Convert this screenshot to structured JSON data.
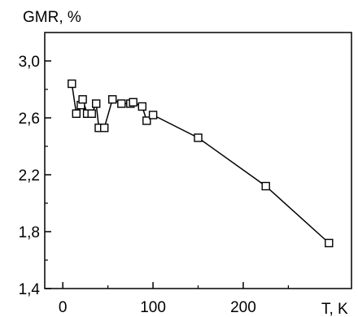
{
  "chart_data": {
    "type": "line",
    "ylabel": "GMR, %",
    "xlabel": "T, K",
    "xlim": [
      -20,
      320
    ],
    "ylim": [
      1.4,
      3.2
    ],
    "x_ticks": [
      0,
      100,
      200
    ],
    "x_tick_labels": [
      "0",
      "100",
      "200"
    ],
    "y_ticks": [
      1.4,
      1.8,
      2.2,
      2.6,
      3.0
    ],
    "y_tick_labels": [
      "1,4",
      "1,8",
      "2,2",
      "2,6",
      "3,0"
    ],
    "grid": false,
    "series": [
      {
        "marker": "open-square",
        "color": "#000000",
        "x": [
          10,
          15,
          20,
          22,
          27,
          32,
          37,
          40,
          46,
          55,
          65,
          75,
          78,
          88,
          93,
          100,
          150,
          225,
          295
        ],
        "y": [
          2.84,
          2.63,
          2.69,
          2.73,
          2.63,
          2.63,
          2.7,
          2.53,
          2.53,
          2.73,
          2.7,
          2.7,
          2.71,
          2.68,
          2.58,
          2.62,
          2.46,
          2.12,
          1.72
        ]
      }
    ]
  }
}
